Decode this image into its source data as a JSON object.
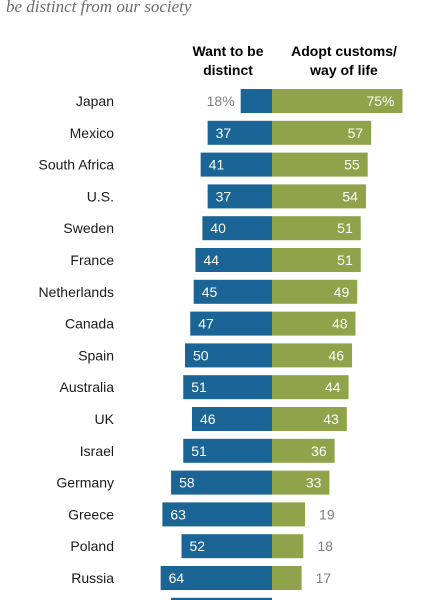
{
  "subtitle": "be distinct from our society",
  "headers": {
    "left": [
      "Want to be",
      "distinct"
    ],
    "right": [
      "Adopt customs/",
      "way of life"
    ]
  },
  "colors": {
    "distinct": "#1a6496",
    "adopt": "#8fa34a",
    "value_inside": "#ffffff",
    "value_outside": "#7f7f7f",
    "label": "#1a1a1a"
  },
  "chart_data": {
    "type": "bar",
    "orientation": "horizontal-diverging",
    "categories": [
      "Japan",
      "Mexico",
      "South Africa",
      "U.S.",
      "Sweden",
      "France",
      "Netherlands",
      "Canada",
      "Spain",
      "Australia",
      "UK",
      "Israel",
      "Germany",
      "Greece",
      "Poland",
      "Russia"
    ],
    "series": [
      {
        "name": "Want to be distinct",
        "values": [
          18,
          37,
          41,
          37,
          40,
          44,
          45,
          47,
          50,
          51,
          46,
          51,
          58,
          63,
          52,
          64
        ]
      },
      {
        "name": "Adopt customs/ way of life",
        "values": [
          75,
          57,
          55,
          54,
          51,
          51,
          49,
          48,
          46,
          44,
          43,
          36,
          33,
          19,
          18,
          17
        ]
      }
    ],
    "first_row_labels": [
      "18%",
      "75%"
    ],
    "xlim": [
      0,
      80
    ]
  }
}
